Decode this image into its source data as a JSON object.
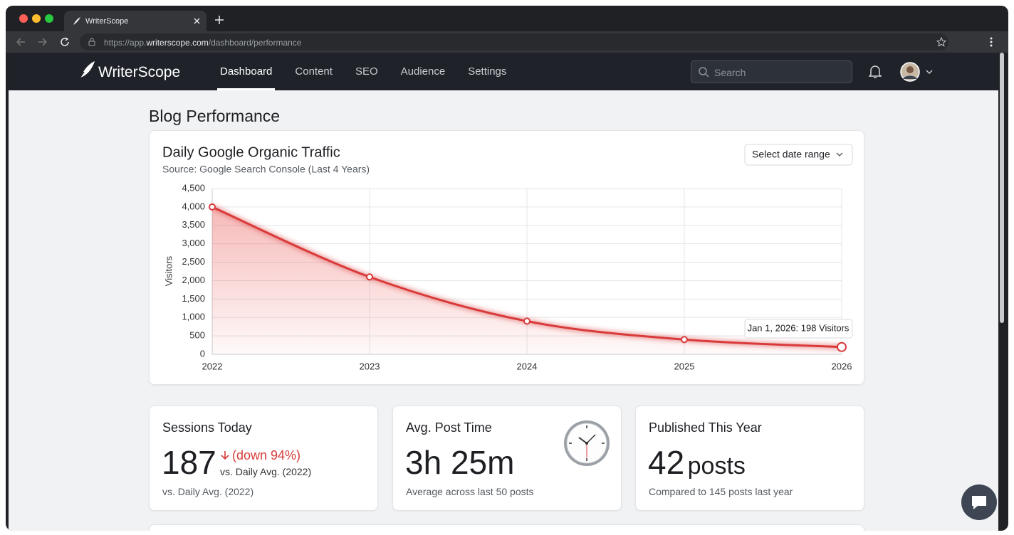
{
  "browser": {
    "tab_title": "WriterScope",
    "url_prefix": "https://app.",
    "url_domain": "writerscope.com",
    "url_path": "/dashboard/performance"
  },
  "nav": {
    "brand": "WriterScope",
    "items": [
      "Dashboard",
      "Content",
      "SEO",
      "Audience",
      "Settings"
    ],
    "search_placeholder": "Search"
  },
  "page_title": "Blog Performance",
  "chart_data": {
    "type": "line",
    "title": "Daily Google Organic Traffic",
    "subtitle": "Source: Google Search Console (Last 4 Years)",
    "control": "Select date range",
    "y_label": "Visitors",
    "x": [
      2022,
      2023,
      2024,
      2025,
      2026
    ],
    "values": [
      4000,
      2100,
      900,
      400,
      198
    ],
    "color": "#d93b3b",
    "xlim": [
      2022,
      2026
    ],
    "xticks": [
      2022,
      2023,
      2024,
      2025,
      2026
    ],
    "ylim": [
      0,
      4500
    ],
    "yticks": [
      0,
      500,
      {
        "value": 1000,
        "label": "1,000"
      },
      {
        "value": 1500,
        "label": "1,500"
      },
      {
        "value": 2000,
        "label": "2,000"
      },
      {
        "value": 2500,
        "label": "2,500"
      },
      {
        "value": 3000,
        "label": "3,000"
      },
      {
        "value": 3500,
        "label": "3,500"
      },
      {
        "value": 4000,
        "label": "4,000"
      },
      {
        "value": 4500,
        "label": "4,500"
      }
    ],
    "grid": true,
    "annotation": "Jan 1, 2026: 198 Visitors"
  },
  "cards": [
    {
      "title": "Sessions Today",
      "value": "187",
      "change": "(down 94%)",
      "change_note": "vs. Daily Avg. (2022)",
      "footnote": "vs. Daily Avg. (2022)"
    },
    {
      "title": "Avg. Post Time",
      "value": "3h 25m",
      "footnote": "Average across last 50 posts"
    },
    {
      "title": "Published This Year",
      "value": "42",
      "unit": "posts",
      "footnote": "Compared to 145 posts last year"
    }
  ]
}
